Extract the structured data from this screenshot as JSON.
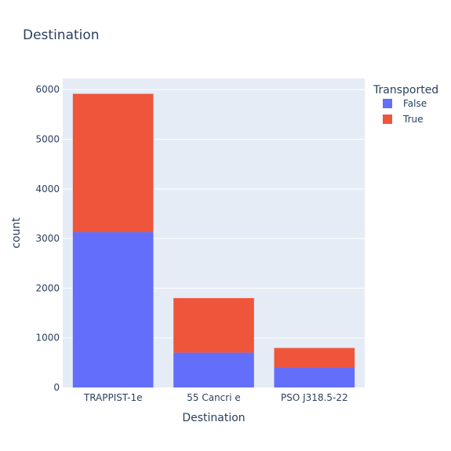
{
  "chart_data": {
    "type": "bar",
    "barmode": "stack",
    "title": "Destination",
    "xlabel": "Destination",
    "ylabel": "count",
    "categories": [
      "TRAPPIST-1e",
      "55 Cancri e",
      "PSO J318.5-22"
    ],
    "series": [
      {
        "name": "False",
        "color": "#636efa",
        "values": [
          3128,
          702,
          395
        ]
      },
      {
        "name": "True",
        "color": "#ef553b",
        "values": [
          2787,
          1098,
          401
        ]
      }
    ],
    "ylim": [
      0,
      6225
    ],
    "yticks": [
      0,
      1000,
      2000,
      3000,
      4000,
      5000,
      6000
    ],
    "legend": {
      "title": "Transported",
      "placement": "top-right"
    },
    "grid": true,
    "plot_bg": "#e5ecf6"
  }
}
